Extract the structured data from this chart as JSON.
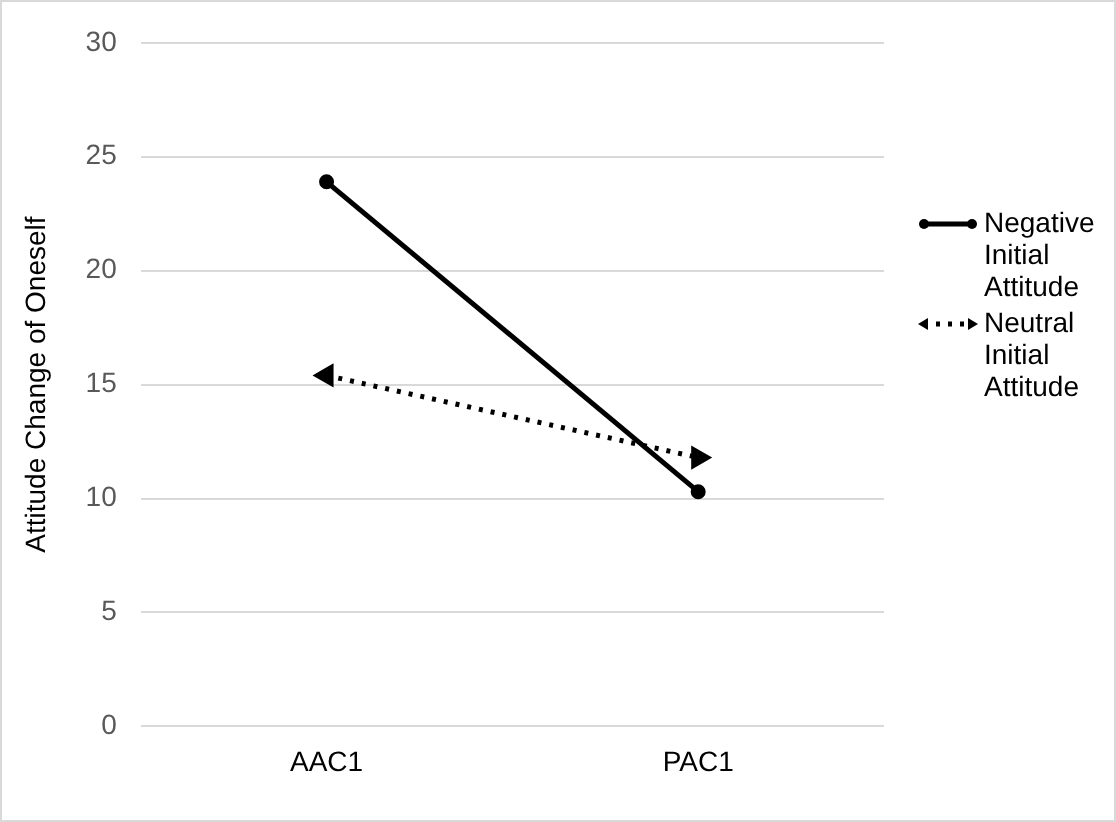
{
  "chart_data": {
    "type": "line",
    "ylabel": "Attitude Change of Oneself",
    "categories": [
      "AAC1",
      "PAC1"
    ],
    "series": [
      {
        "name": "Negative Initial Attitude",
        "color": "#000000",
        "values": [
          23.9,
          10.3
        ],
        "marker": "circle",
        "line_style": "solid"
      },
      {
        "name": "Neutral Initial Attitude",
        "color": "#000000",
        "values": [
          15.4,
          11.8
        ],
        "marker": "triangle",
        "line_style": "dotted"
      }
    ],
    "ylim": [
      0,
      30
    ],
    "yticks": [
      0,
      5,
      10,
      15,
      20,
      25,
      30
    ],
    "grid": "y",
    "legend": "right"
  }
}
